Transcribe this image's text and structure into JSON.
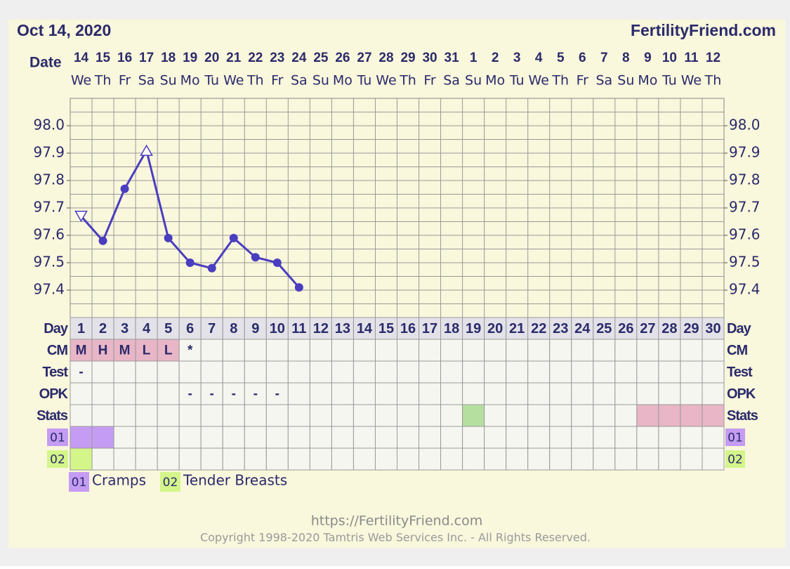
{
  "header": {
    "date": "Oct 14, 2020",
    "site": "FertilityFriend.com"
  },
  "chart_data": {
    "type": "line",
    "x_label": "Date",
    "dates": [
      "14",
      "15",
      "16",
      "17",
      "18",
      "19",
      "20",
      "21",
      "22",
      "23",
      "24",
      "25",
      "26",
      "27",
      "28",
      "29",
      "30",
      "31",
      "1",
      "2",
      "3",
      "4",
      "5",
      "6",
      "7",
      "8",
      "9",
      "10",
      "11",
      "12"
    ],
    "weekdays": [
      "We",
      "Th",
      "Fr",
      "Sa",
      "Su",
      "Mo",
      "Tu",
      "We",
      "Th",
      "Fr",
      "Sa",
      "Su",
      "Mo",
      "Tu",
      "We",
      "Th",
      "Fr",
      "Sa",
      "Su",
      "Mo",
      "Tu",
      "We",
      "Th",
      "Fr",
      "Sa",
      "Su",
      "Mo",
      "Tu",
      "We",
      "Th"
    ],
    "ylim": [
      97.3,
      98.1
    ],
    "yticks": [
      {
        "value": 97.4,
        "label": "97.4"
      },
      {
        "value": 97.5,
        "label": "97.5"
      },
      {
        "value": 97.6,
        "label": "97.6"
      },
      {
        "value": 97.7,
        "label": "97.7"
      },
      {
        "value": 97.8,
        "label": "97.8"
      },
      {
        "value": 97.9,
        "label": "97.9"
      },
      {
        "value": 98.0,
        "label": "98.0"
      }
    ],
    "ygrid": [
      97.35,
      97.4,
      97.45,
      97.5,
      97.55,
      97.6,
      97.65,
      97.7,
      97.75,
      97.8,
      97.85,
      97.9,
      97.95,
      98.0,
      98.05
    ],
    "grid": true,
    "series": [
      {
        "color": "#4a3dbf",
        "values": [
          97.67,
          97.58,
          97.77,
          97.91,
          97.59,
          97.5,
          97.48,
          97.59,
          97.52,
          97.5,
          97.41,
          null,
          null,
          null,
          null,
          null,
          null,
          null,
          null,
          null,
          null,
          null,
          null,
          null,
          null,
          null,
          null,
          null,
          null,
          null
        ],
        "markers": [
          "triangle-down",
          "circle",
          "circle",
          "triangle-up",
          "circle",
          "circle",
          "circle",
          "circle",
          "circle",
          "circle",
          "circle",
          null,
          null,
          null,
          null,
          null,
          null,
          null,
          null,
          null,
          null,
          null,
          null,
          null,
          null,
          null,
          null,
          null,
          null,
          null
        ]
      }
    ]
  },
  "rows": {
    "day_label": "Day",
    "days": [
      1,
      2,
      3,
      4,
      5,
      6,
      7,
      8,
      9,
      10,
      11,
      12,
      13,
      14,
      15,
      16,
      17,
      18,
      19,
      20,
      21,
      22,
      23,
      24,
      25,
      26,
      27,
      28,
      29,
      30
    ],
    "cm_label": "CM",
    "cm": [
      "M",
      "H",
      "M",
      "L",
      "L",
      "*",
      null,
      null,
      null,
      null,
      null,
      null,
      null,
      null,
      null,
      null,
      null,
      null,
      null,
      null,
      null,
      null,
      null,
      null,
      null,
      null,
      null,
      null,
      null,
      null
    ],
    "cm_color": "#e8b6c7",
    "test_label": "Test",
    "test": [
      "-",
      null,
      null,
      null,
      null,
      null,
      null,
      null,
      null,
      null,
      null,
      null,
      null,
      null,
      null,
      null,
      null,
      null,
      null,
      null,
      null,
      null,
      null,
      null,
      null,
      null,
      null,
      null,
      null,
      null
    ],
    "opk_label": "OPK",
    "opk": [
      null,
      null,
      null,
      null,
      null,
      "-",
      "-",
      "-",
      "-",
      "-",
      null,
      null,
      null,
      null,
      null,
      null,
      null,
      null,
      null,
      null,
      null,
      null,
      null,
      null,
      null,
      null,
      null,
      null,
      null,
      null
    ],
    "stats_label": "Stats",
    "stats_colors": [
      null,
      null,
      null,
      null,
      null,
      null,
      null,
      null,
      null,
      null,
      null,
      null,
      null,
      null,
      null,
      null,
      null,
      null,
      "#b5df9f",
      null,
      null,
      null,
      null,
      null,
      null,
      null,
      "#e8b6c6",
      "#e8b6c6",
      "#e8b6c6",
      "#e8b6c6"
    ]
  },
  "symptoms": [
    {
      "code": "01",
      "name": "Cramps",
      "color": "#c59cf3",
      "days": [
        1,
        2
      ]
    },
    {
      "code": "02",
      "name": "Tender Breasts",
      "color": "#d4f58a",
      "days": [
        1
      ]
    }
  ],
  "footer": {
    "url": "https://FertilityFriend.com",
    "copyright": "Copyright 1998-2020 Tamtris Web Services Inc. - All Rights Reserved."
  }
}
